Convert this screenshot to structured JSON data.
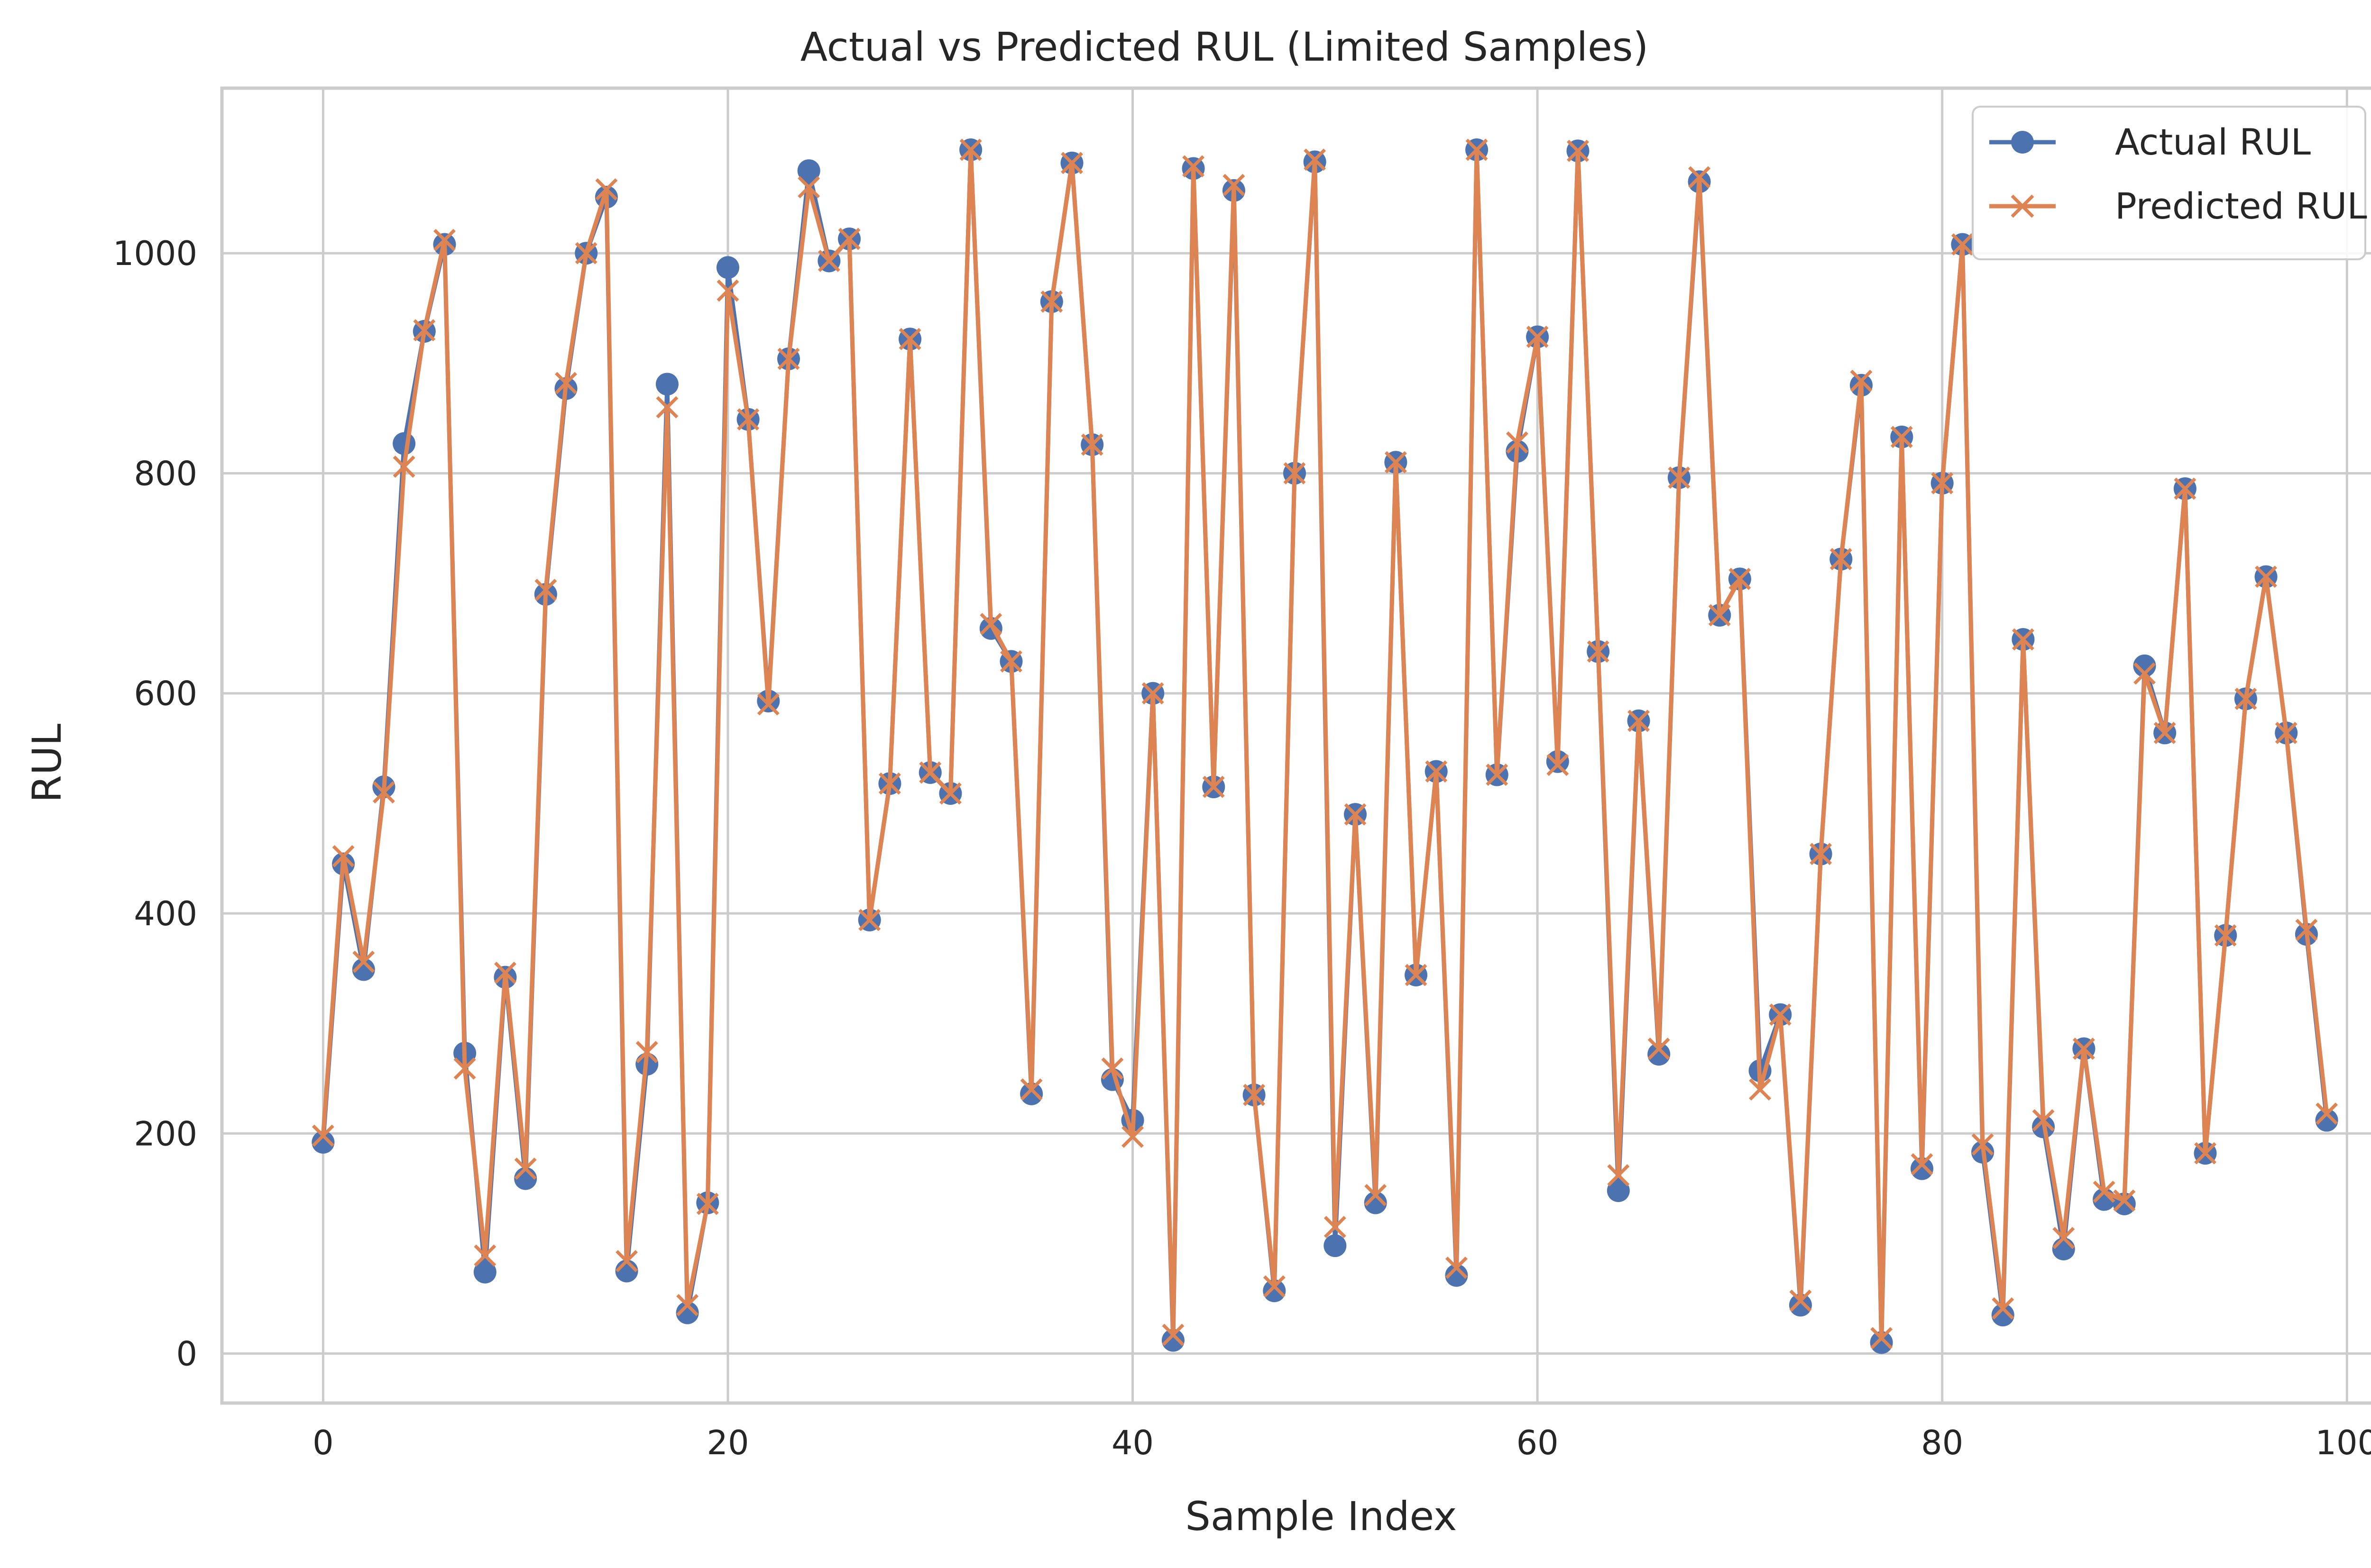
{
  "chart_data": {
    "type": "line",
    "title": "Actual vs Predicted RUL (Limited Samples)",
    "xlabel": "Sample Index",
    "ylabel": "RUL",
    "xlim": [
      -5,
      104
    ],
    "ylim": [
      -45,
      1150
    ],
    "xticks": [
      0,
      20,
      40,
      60,
      80,
      100
    ],
    "yticks": [
      0,
      200,
      400,
      600,
      800,
      1000
    ],
    "grid": true,
    "legend_position": "top-right",
    "x": [
      0,
      1,
      2,
      3,
      4,
      5,
      6,
      7,
      8,
      9,
      10,
      11,
      12,
      13,
      14,
      15,
      16,
      17,
      18,
      19,
      20,
      21,
      22,
      23,
      24,
      25,
      26,
      27,
      28,
      29,
      30,
      31,
      32,
      33,
      34,
      35,
      36,
      37,
      38,
      39,
      40,
      41,
      42,
      43,
      44,
      45,
      46,
      47,
      48,
      49,
      50,
      51,
      52,
      53,
      54,
      55,
      56,
      57,
      58,
      59,
      60,
      61,
      62,
      63,
      64,
      65,
      66,
      67,
      68,
      69,
      70,
      71,
      72,
      73,
      74,
      75,
      76,
      77,
      78,
      79,
      80,
      81,
      82,
      83,
      84,
      85,
      86,
      87,
      88,
      89,
      90,
      91,
      92,
      93,
      94,
      95,
      96,
      97,
      98,
      99
    ],
    "series": [
      {
        "name": "Actual RUL",
        "color": "#4c72b0",
        "marker": "circle",
        "values": [
          192,
          445,
          349,
          515,
          827,
          929,
          1008,
          273,
          74,
          342,
          159,
          690,
          877,
          1000,
          1051,
          75,
          263,
          881,
          37,
          137,
          987,
          849,
          593,
          904,
          1075,
          993,
          1013,
          394,
          518,
          922,
          528,
          509,
          1094,
          659,
          629,
          236,
          956,
          1082,
          826,
          249,
          212,
          600,
          12,
          1077,
          515,
          1057,
          235,
          57,
          800,
          1083,
          98,
          490,
          137,
          810,
          344,
          529,
          71,
          1094,
          526,
          820,
          924,
          538,
          1093,
          638,
          148,
          575,
          272,
          796,
          1065,
          671,
          704,
          257,
          308,
          44,
          454,
          722,
          880,
          10,
          833,
          168,
          791,
          1008,
          183,
          35,
          649,
          206,
          95,
          277,
          140,
          136,
          625,
          564,
          786,
          182,
          380,
          595,
          706,
          564,
          381,
          212
        ]
      },
      {
        "name": "Predicted RUL",
        "color": "#dd8452",
        "marker": "x",
        "values": [
          198,
          452,
          356,
          510,
          806,
          930,
          1012,
          259,
          89,
          346,
          168,
          694,
          882,
          1000,
          1058,
          84,
          274,
          860,
          44,
          136,
          966,
          849,
          590,
          904,
          1060,
          993,
          1013,
          394,
          518,
          922,
          528,
          509,
          1094,
          663,
          629,
          240,
          956,
          1082,
          826,
          259,
          197,
          600,
          17,
          1079,
          515,
          1062,
          235,
          61,
          800,
          1085,
          115,
          490,
          144,
          810,
          344,
          529,
          78,
          1094,
          526,
          828,
          924,
          535,
          1093,
          638,
          162,
          575,
          277,
          796,
          1069,
          671,
          704,
          240,
          308,
          48,
          454,
          722,
          884,
          14,
          833,
          172,
          791,
          1008,
          190,
          41,
          649,
          212,
          105,
          277,
          147,
          139,
          618,
          564,
          786,
          182,
          380,
          595,
          706,
          564,
          385,
          218
        ]
      }
    ]
  }
}
